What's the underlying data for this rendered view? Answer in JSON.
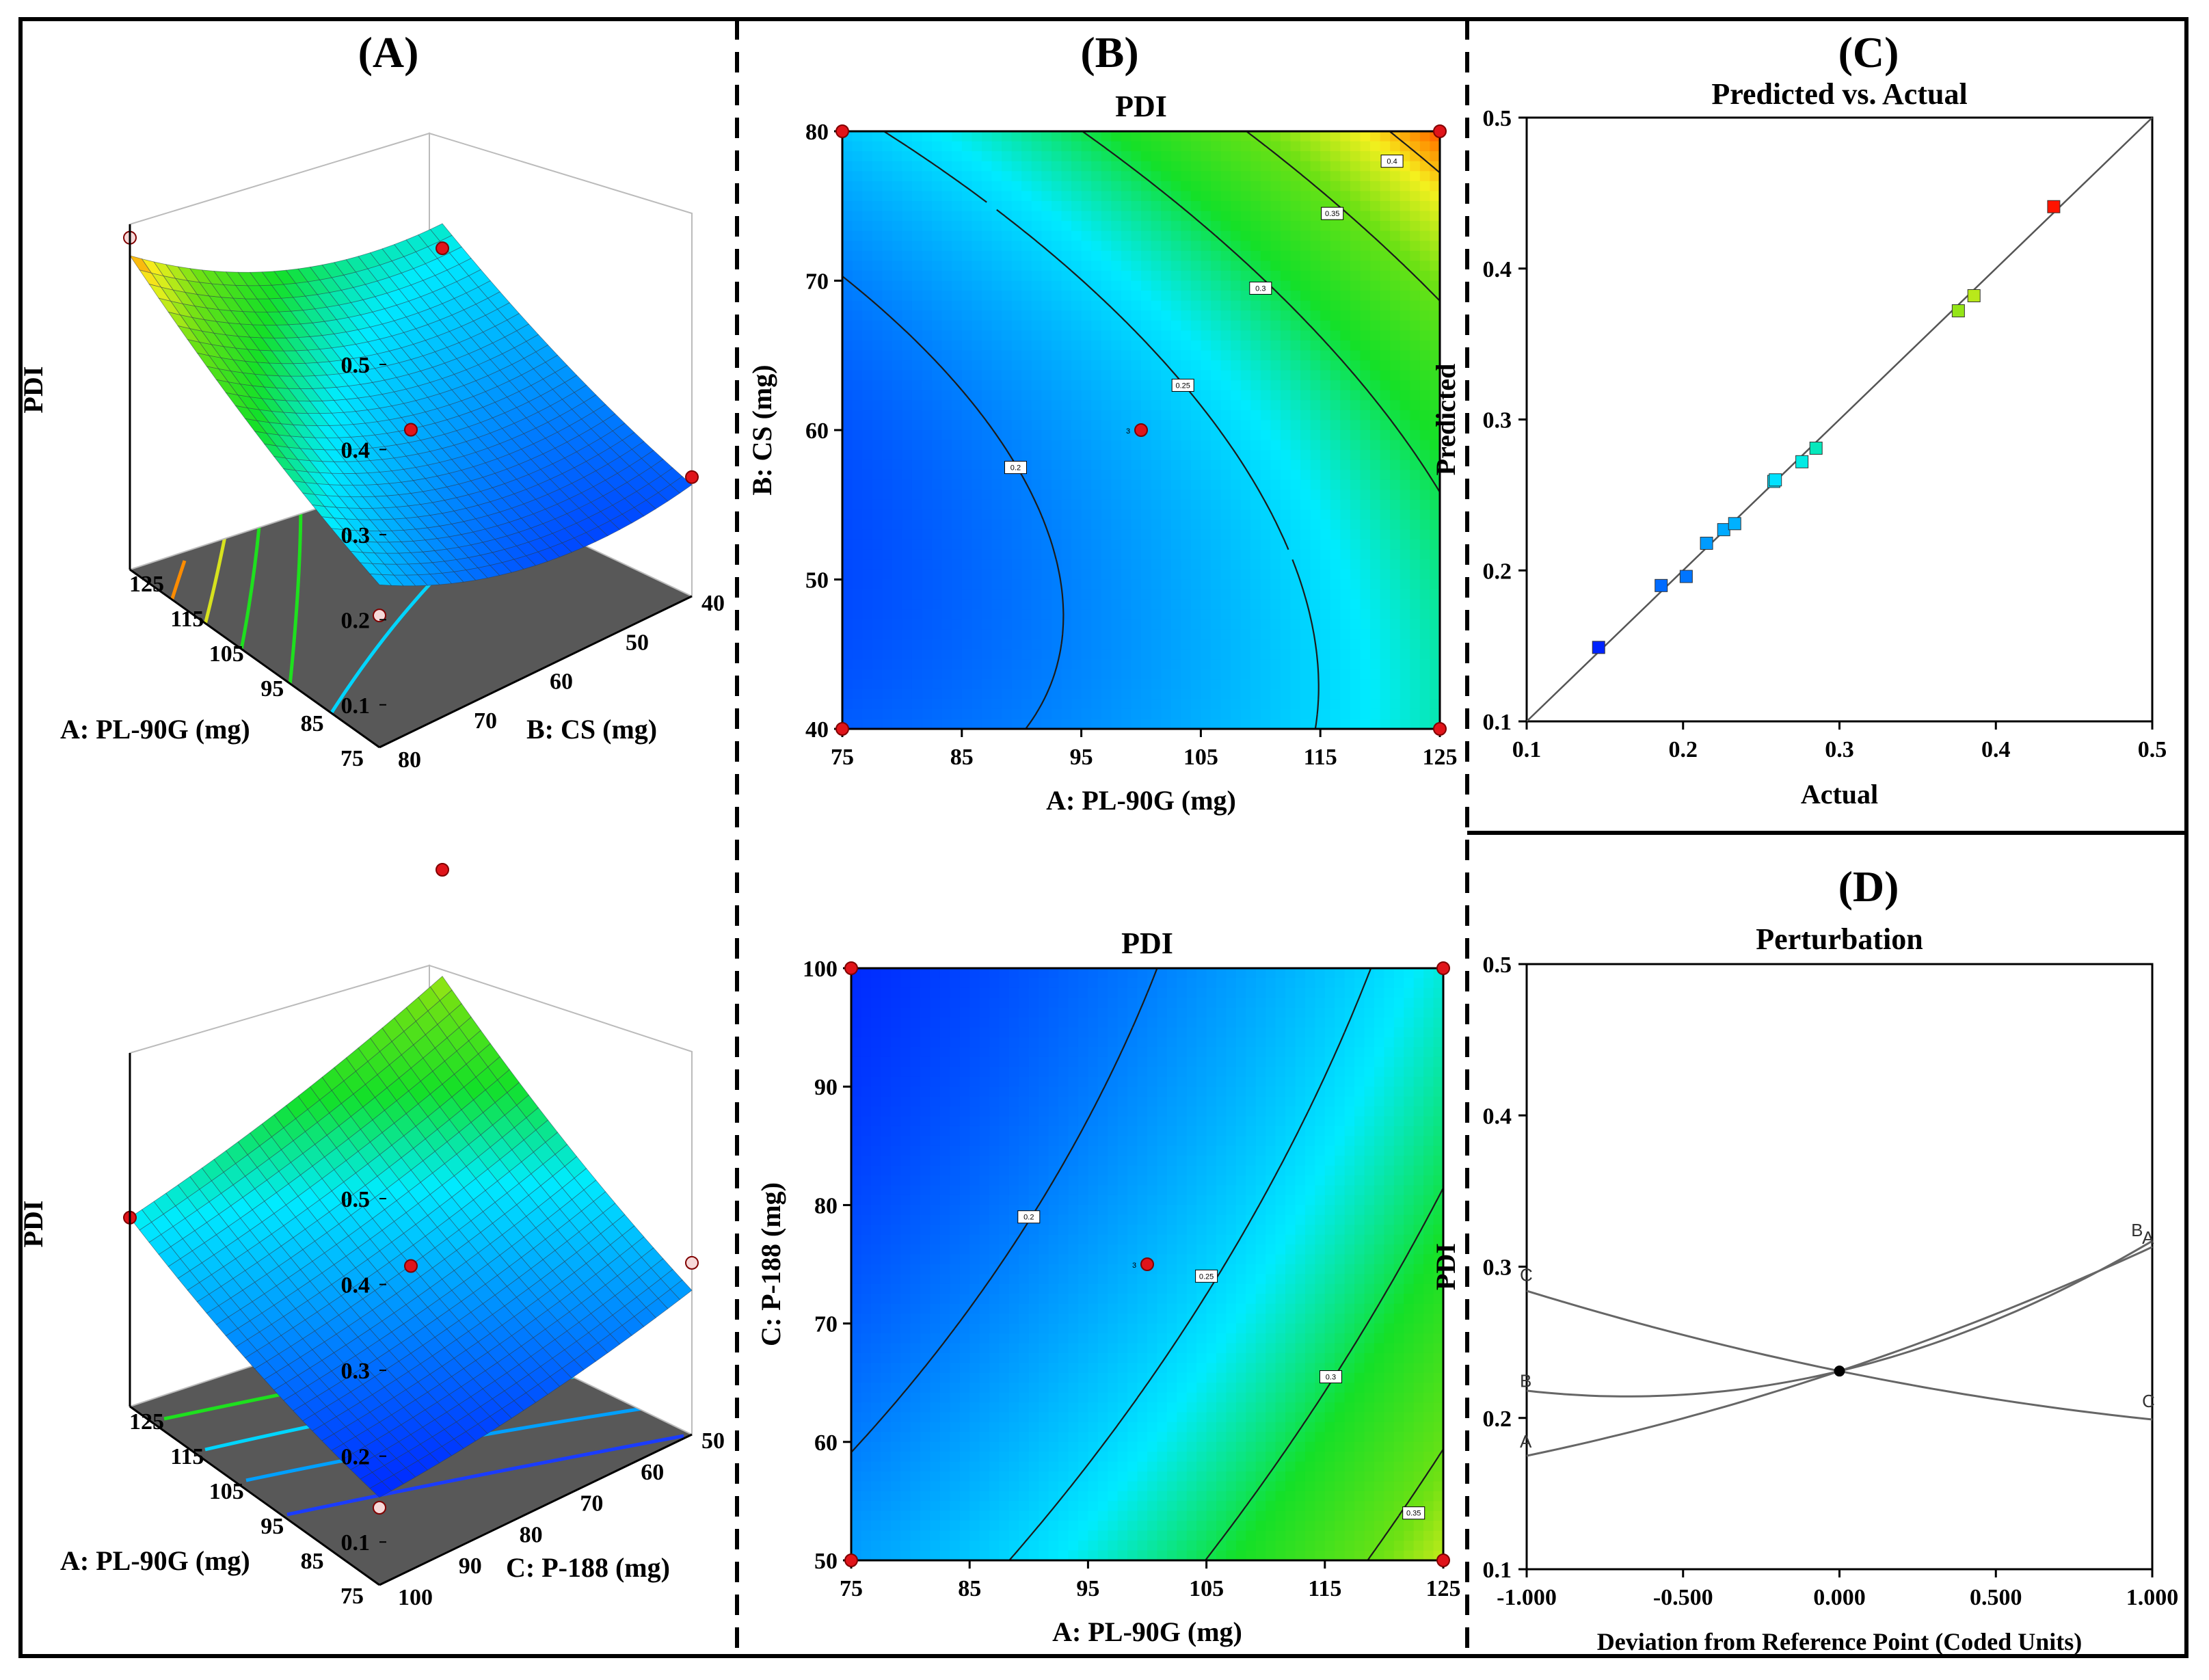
{
  "panels": {
    "a": "(A)",
    "b": "(B)",
    "c": "(C)",
    "d": "(D)"
  },
  "surface_top": {
    "zlabel": "PDI",
    "zticks": [
      "0.1",
      "0.2",
      "0.3",
      "0.4",
      "0.5"
    ],
    "xlabel": "A: PL-90G (mg)",
    "xticks": [
      "75",
      "85",
      "95",
      "105",
      "115",
      "125"
    ],
    "ylabel": "B: CS (mg)",
    "yticks": [
      "80",
      "70",
      "60",
      "50",
      "40"
    ]
  },
  "surface_bottom": {
    "zlabel": "PDI",
    "zticks": [
      "0.1",
      "0.2",
      "0.3",
      "0.4",
      "0.5"
    ],
    "xlabel": "A: PL-90G (mg)",
    "xticks": [
      "75",
      "85",
      "95",
      "105",
      "115",
      "125"
    ],
    "ylabel": "C: P-188 (mg)",
    "yticks": [
      "100",
      "90",
      "80",
      "70",
      "60",
      "50"
    ]
  },
  "colors": {
    "blue": "#1a3cff",
    "cyan": "#00e5ff",
    "green": "#1ee01e",
    "yellow": "#f5f020",
    "orange": "#ff8c00",
    "red": "#ff1a00",
    "floor": "#585858",
    "point": "#e0141a"
  },
  "chart_data": [
    {
      "type": "contour",
      "panel": "B-top",
      "title": "PDI",
      "xlabel": "A: PL-90G (mg)",
      "ylabel": "B: CS (mg)",
      "xlim": [
        75,
        125
      ],
      "ylim": [
        40,
        80
      ],
      "xticks": [
        75,
        85,
        95,
        105,
        115,
        125
      ],
      "yticks": [
        40,
        50,
        60,
        70,
        80
      ],
      "tick_labels_x": [
        "75",
        "85",
        "95",
        "105",
        "115",
        "125"
      ],
      "tick_labels_y": [
        "40",
        "50",
        "60",
        "70",
        "80"
      ],
      "contour_levels": [
        0.2,
        0.25,
        0.3,
        0.35,
        0.4
      ],
      "contour_labels": [
        "0.2",
        "0.25",
        "0.3",
        "0.35",
        "0.4"
      ],
      "center_point": {
        "x": 100,
        "y": 60,
        "label": "3"
      }
    },
    {
      "type": "contour",
      "panel": "B-bottom",
      "title": "PDI",
      "xlabel": "A: PL-90G (mg)",
      "ylabel": "C: P-188 (mg)",
      "xlim": [
        75,
        125
      ],
      "ylim": [
        50,
        100
      ],
      "xticks": [
        75,
        85,
        95,
        105,
        115,
        125
      ],
      "yticks": [
        50,
        60,
        70,
        80,
        90,
        100
      ],
      "tick_labels_x": [
        "75",
        "85",
        "95",
        "105",
        "115",
        "125"
      ],
      "tick_labels_y": [
        "50",
        "60",
        "70",
        "80",
        "90",
        "100"
      ],
      "contour_levels": [
        0.2,
        0.25,
        0.3,
        0.35
      ],
      "contour_labels": [
        "0.2",
        "0.25",
        "0.3",
        "0.35"
      ],
      "center_point": {
        "x": 100,
        "y": 75,
        "label": "3"
      }
    },
    {
      "type": "scatter",
      "panel": "C",
      "title": "Predicted vs. Actual",
      "xlabel": "Actual",
      "ylabel": "Predicted",
      "xlim": [
        0.1,
        0.5
      ],
      "ylim": [
        0.1,
        0.5
      ],
      "xticks": [
        "0.1",
        "0.2",
        "0.3",
        "0.4",
        "0.5"
      ],
      "yticks": [
        "0.1",
        "0.2",
        "0.3",
        "0.4",
        "0.5"
      ],
      "x": [
        0.146,
        0.186,
        0.202,
        0.215,
        0.226,
        0.233,
        0.258,
        0.259,
        0.276,
        0.285,
        0.376,
        0.386,
        0.437
      ],
      "y": [
        0.149,
        0.19,
        0.196,
        0.218,
        0.227,
        0.231,
        0.259,
        0.26,
        0.272,
        0.281,
        0.372,
        0.382,
        0.441
      ]
    },
    {
      "type": "line",
      "panel": "D",
      "title": "Perturbation",
      "xlabel": "Deviation from Reference Point (Coded Units)",
      "ylabel": "PDI",
      "xlim": [
        -1.0,
        1.0
      ],
      "ylim": [
        0.1,
        0.5
      ],
      "xticks": [
        "-1.000",
        "-0.500",
        "0.000",
        "0.500",
        "1.000"
      ],
      "yticks": [
        "0.1",
        "0.2",
        "0.3",
        "0.4",
        "0.5"
      ],
      "series": [
        {
          "name": "A",
          "x": [
            -1.0,
            -0.5,
            0.0,
            0.5,
            1.0
          ],
          "values": [
            0.175,
            0.196,
            0.231,
            0.266,
            0.313
          ]
        },
        {
          "name": "B",
          "x": [
            -1.0,
            -0.5,
            0.0,
            0.5,
            1.0
          ],
          "values": [
            0.218,
            0.216,
            0.231,
            0.262,
            0.317
          ]
        },
        {
          "name": "C",
          "x": [
            -1.0,
            -0.5,
            0.0,
            0.5,
            1.0
          ],
          "values": [
            0.284,
            0.256,
            0.231,
            0.212,
            0.199
          ]
        }
      ],
      "start_labels": [
        "C",
        "B",
        "A"
      ],
      "end_labels": [
        "B",
        "A",
        "C"
      ]
    }
  ]
}
